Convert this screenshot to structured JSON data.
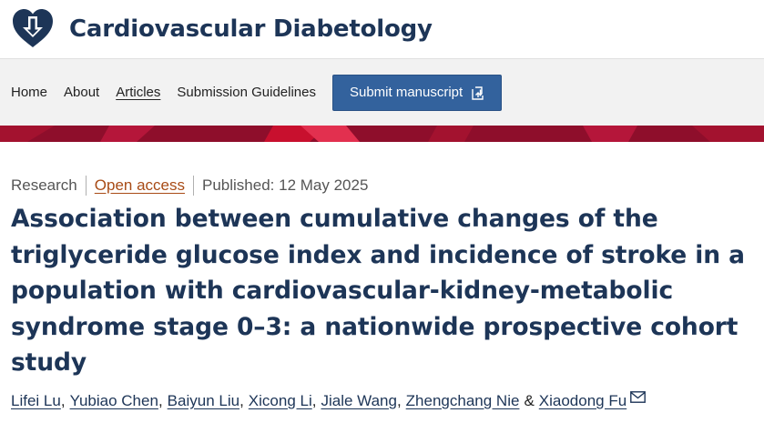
{
  "brand": {
    "title": "Cardiovascular Diabetology",
    "logo_icon": "heart-arrow-logo-icon",
    "color": "#1d3557"
  },
  "nav": {
    "items": [
      {
        "label": "Home",
        "active": false
      },
      {
        "label": "About",
        "active": false
      },
      {
        "label": "Articles",
        "active": true
      },
      {
        "label": "Submission Guidelines",
        "active": false
      }
    ],
    "submit_label": "Submit manuscript",
    "submit_icon": "external-link-icon",
    "submit_color": "#33629d"
  },
  "banner": {
    "color": "#8e0e2b",
    "accent": "#c8102e"
  },
  "article": {
    "type": "Research",
    "access": "Open access",
    "published": "Published: 12 May 2025",
    "title": "Association between cumulative changes of the triglyceride glucose index and incidence of stroke in a population with cardiovascular-kidney-metabolic syndrome stage 0–3: a nationwide prospective cohort study",
    "authors": [
      "Lifei Lu",
      "Yubiao Chen",
      "Baiyun Liu",
      "Xicong Li",
      "Jiale Wang",
      "Zhengchang Nie",
      "Xiaodong Fu"
    ],
    "separator": ",",
    "conjunction": "&",
    "corresponding_icon": "email-icon",
    "access_color": "#a84b16"
  }
}
